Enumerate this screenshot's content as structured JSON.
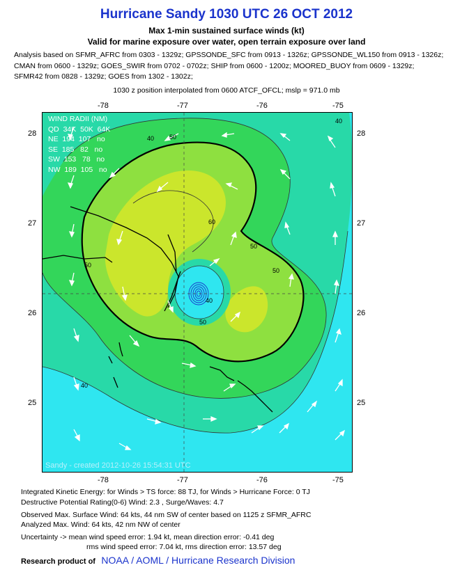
{
  "header": {
    "title": "Hurricane Sandy 1030 UTC 26 OCT 2012",
    "subtitle": "Max 1-min sustained surface winds (kt)",
    "subtitle2": "Valid for marine exposure over water, open terrain exposure over land"
  },
  "analysis_lines": [
    "Analysis based on SFMR_AFRC from 0303 - 1329z; GPSSONDE_SFC from 0913 - 1326z; GPSSONDE_WL150 from 0913 - 1326z;",
    "CMAN from 0600 - 1329z; GOES_SWIR from 0702 - 0702z; SHIP from 0600 - 1200z; MOORED_BUOY from 0609 - 1329z;",
    "SFMR42 from 0828 - 1329z; GOES from 1302 - 1302z;"
  ],
  "position_line": "1030 z position interpolated from 0600 ATCF_OFCL; mslp = 971.0 mb",
  "map": {
    "lon_ticks": [
      "-78",
      "-77",
      "-76",
      "-75"
    ],
    "lat_ticks": [
      "28",
      "27",
      "26",
      "25"
    ],
    "contour_labels": [
      "40",
      "50",
      "60",
      "50",
      "50",
      "40",
      "50",
      "40",
      "40",
      "50"
    ],
    "wind_radii": {
      "title": "WIND RADII (NM)",
      "header": "QD  34K  50K  64K",
      "rows": [
        "NE  194  107   no",
        "SE  185   82   no",
        "SW  153   78   no",
        "NW  189  105   no"
      ]
    },
    "watermark": "Sandy - created 2012-10-26 15:54:31 UTC"
  },
  "footer": {
    "ike": "Integrated Kinetic Energy: for Winds > TS force: 88 TJ, for Winds > Hurricane Force: 0 TJ",
    "dp": "Destructive Potential Rating(0-6)  Wind: 2.3 , Surge/Waves: 4.7",
    "obs": "Observed Max. Surface Wind: 64 kts, 44 nm SW of center based on 1125 z SFMR_AFRC",
    "analyzed": "Analyzed Max. Wind: 64 kts, 42 nm  NW of center",
    "uncert1": "Uncertainty -> mean wind speed error: 1.94 kt, mean direction error:  -0.41 deg",
    "uncert2": "rms wind speed error: 7.04 kt, rms direction error: 13.57 deg",
    "research_label": "Research product of",
    "research_org": "NOAA  /  AOML  /  Hurricane Research Division"
  },
  "colors": {
    "title": "#1a33cc",
    "cyan": "#2fe6f0",
    "teal": "#28d9a8",
    "green": "#33d65a",
    "lightgreen": "#8ee040",
    "yellowgreen": "#cbe62c",
    "blue": "#1a33cc"
  }
}
